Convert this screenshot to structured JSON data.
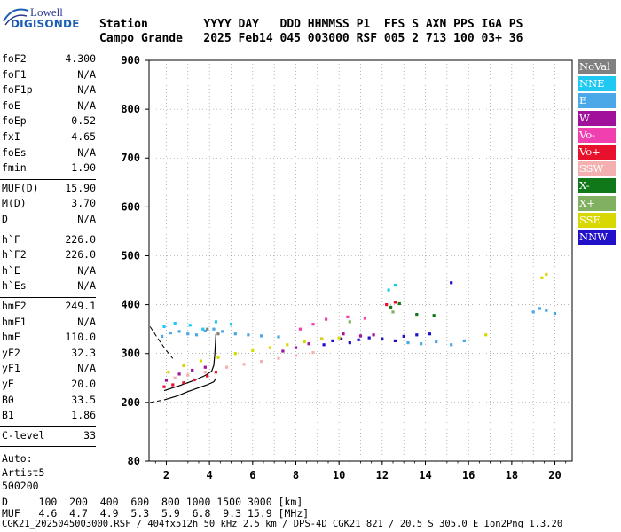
{
  "logo": {
    "top": "Lowell",
    "bottom": "DIGISONDE"
  },
  "header": {
    "line1": "Station        YYYY DAY   DDD HHMMSS P1  FFS S AXN PPS IGA PS",
    "line2": "Campo Grande   2025 Feb14 045 003000 RSF 005 2 713 100 03+ 36"
  },
  "params_group1": [
    {
      "label": "foF2",
      "value": "4.300"
    },
    {
      "label": "foF1",
      "value": "N/A"
    },
    {
      "label": "foF1p",
      "value": "N/A"
    },
    {
      "label": "foE",
      "value": "N/A"
    },
    {
      "label": "foEp",
      "value": "0.52"
    },
    {
      "label": "fxI",
      "value": "4.65"
    },
    {
      "label": "foEs",
      "value": "N/A"
    },
    {
      "label": "fmin",
      "value": "1.90"
    }
  ],
  "params_group2": [
    {
      "label": "MUF(D)",
      "value": "15.90"
    },
    {
      "label": "M(D)",
      "value": "3.70"
    },
    {
      "label": "D",
      "value": "N/A"
    }
  ],
  "params_group3": [
    {
      "label": "h`F",
      "value": "226.0"
    },
    {
      "label": "h`F2",
      "value": "226.0"
    },
    {
      "label": "h`E",
      "value": "N/A"
    },
    {
      "label": "h`Es",
      "value": "N/A"
    }
  ],
  "params_group4": [
    {
      "label": "hmF2",
      "value": "249.1"
    },
    {
      "label": "hmF1",
      "value": "N/A"
    },
    {
      "label": "hmE",
      "value": "110.0"
    },
    {
      "label": "yF2",
      "value": "32.3"
    },
    {
      "label": "yF1",
      "value": "N/A"
    },
    {
      "label": "yE",
      "value": "20.0"
    },
    {
      "label": "B0",
      "value": "33.5"
    },
    {
      "label": "B1",
      "value": "1.86"
    }
  ],
  "params_group5": [
    {
      "label": "C-level",
      "value": "33"
    }
  ],
  "autoscale": {
    "line1": "Auto:",
    "line2": "Artist5",
    "line3": "500200"
  },
  "legend": [
    {
      "name": "NoVal",
      "color": "#808080"
    },
    {
      "name": "NNE",
      "color": "#1ec8f0"
    },
    {
      "name": "E",
      "color": "#4aa8e8"
    },
    {
      "name": "W",
      "color": "#a0109a"
    },
    {
      "name": "Vo-",
      "color": "#f040b0"
    },
    {
      "name": "Vo+",
      "color": "#e8102a"
    },
    {
      "name": "SSW",
      "color": "#f4b0b0"
    },
    {
      "name": "X-",
      "color": "#107818"
    },
    {
      "name": "X+",
      "color": "#80b060"
    },
    {
      "name": "SSE",
      "color": "#d8d800"
    },
    {
      "name": "NNW",
      "color": "#2010c8"
    }
  ],
  "chart_data": {
    "type": "scatter",
    "title": "",
    "xlabel": "",
    "ylabel": "",
    "xlim": [
      1.2,
      20.8
    ],
    "ylim": [
      80,
      900
    ],
    "xticks": [
      2,
      4,
      6,
      8,
      10,
      12,
      14,
      16,
      18,
      20
    ],
    "yticks": [
      80,
      200,
      300,
      400,
      500,
      600,
      700,
      800,
      900
    ],
    "grid": true,
    "series": [
      {
        "name": "E",
        "color": "#4aa8e8",
        "points": [
          [
            1.8,
            335
          ],
          [
            2.2,
            342
          ],
          [
            2.6,
            345
          ],
          [
            3.0,
            340
          ],
          [
            3.4,
            338
          ],
          [
            3.8,
            346
          ],
          [
            4.2,
            350
          ],
          [
            4.6,
            345
          ],
          [
            5.2,
            340
          ],
          [
            5.8,
            338
          ],
          [
            6.4,
            336
          ],
          [
            7.2,
            334
          ],
          [
            13.2,
            322
          ],
          [
            13.8,
            320
          ],
          [
            14.5,
            324
          ],
          [
            15.2,
            318
          ],
          [
            15.8,
            326
          ],
          [
            19.0,
            385
          ],
          [
            19.3,
            392
          ],
          [
            19.6,
            388
          ],
          [
            20.0,
            382
          ]
        ]
      },
      {
        "name": "NNE",
        "color": "#1ec8f0",
        "points": [
          [
            1.9,
            355
          ],
          [
            2.4,
            362
          ],
          [
            3.1,
            358
          ],
          [
            3.7,
            350
          ],
          [
            4.3,
            365
          ],
          [
            5.0,
            360
          ],
          [
            12.3,
            430
          ],
          [
            12.6,
            440
          ]
        ]
      },
      {
        "name": "NNW",
        "color": "#2010c8",
        "points": [
          [
            9.3,
            318
          ],
          [
            9.7,
            326
          ],
          [
            10.1,
            330
          ],
          [
            10.5,
            322
          ],
          [
            10.9,
            328
          ],
          [
            11.4,
            332
          ],
          [
            12.0,
            330
          ],
          [
            12.6,
            326
          ],
          [
            13.0,
            335
          ],
          [
            13.6,
            338
          ],
          [
            14.2,
            340
          ],
          [
            15.2,
            445
          ]
        ]
      },
      {
        "name": "W",
        "color": "#a0109a",
        "points": [
          [
            2.0,
            245
          ],
          [
            2.6,
            258
          ],
          [
            3.2,
            266
          ],
          [
            3.8,
            272
          ],
          [
            7.4,
            305
          ],
          [
            8.0,
            312
          ],
          [
            8.6,
            320
          ],
          [
            9.2,
            330
          ],
          [
            10.2,
            340
          ],
          [
            11.0,
            336
          ],
          [
            11.6,
            338
          ]
        ]
      },
      {
        "name": "Vo-",
        "color": "#f040b0",
        "points": [
          [
            8.2,
            350
          ],
          [
            8.8,
            360
          ],
          [
            9.4,
            370
          ],
          [
            10.4,
            375
          ],
          [
            11.2,
            372
          ]
        ]
      },
      {
        "name": "Vo+",
        "color": "#e8102a",
        "points": [
          [
            1.9,
            232
          ],
          [
            2.3,
            236
          ],
          [
            2.8,
            240
          ],
          [
            3.3,
            246
          ],
          [
            3.9,
            254
          ],
          [
            4.3,
            262
          ],
          [
            12.2,
            400
          ],
          [
            12.6,
            405
          ]
        ]
      },
      {
        "name": "SSW",
        "color": "#f4b0b0",
        "points": [
          [
            2.4,
            250
          ],
          [
            3.0,
            256
          ],
          [
            3.8,
            262
          ],
          [
            4.8,
            272
          ],
          [
            5.6,
            278
          ],
          [
            6.4,
            284
          ],
          [
            7.2,
            290
          ],
          [
            8.0,
            296
          ],
          [
            8.8,
            302
          ]
        ]
      },
      {
        "name": "X-",
        "color": "#107818",
        "points": [
          [
            12.4,
            395
          ],
          [
            12.8,
            402
          ],
          [
            13.6,
            380
          ],
          [
            14.4,
            378
          ]
        ]
      },
      {
        "name": "X+",
        "color": "#80b060",
        "points": [
          [
            10.5,
            365
          ],
          [
            12.5,
            385
          ]
        ]
      },
      {
        "name": "SSE",
        "color": "#d8d800",
        "points": [
          [
            2.1,
            262
          ],
          [
            2.8,
            275
          ],
          [
            3.6,
            285
          ],
          [
            4.4,
            292
          ],
          [
            5.2,
            300
          ],
          [
            6.0,
            306
          ],
          [
            6.8,
            312
          ],
          [
            7.6,
            318
          ],
          [
            8.4,
            324
          ],
          [
            9.2,
            330
          ],
          [
            10.0,
            332
          ],
          [
            16.8,
            338
          ],
          [
            19.4,
            455
          ],
          [
            19.6,
            462
          ]
        ]
      },
      {
        "name": "NoVal",
        "color": "#808080",
        "points": [
          [
            3.9,
            350
          ],
          [
            4.4,
            340
          ]
        ]
      }
    ],
    "profile_curve": [
      [
        1.9,
        205
      ],
      [
        2.5,
        213
      ],
      [
        3.0,
        222
      ],
      [
        3.5,
        230
      ],
      [
        3.9,
        236
      ],
      [
        4.2,
        242
      ],
      [
        4.3,
        249
      ]
    ],
    "profile_curve2": [
      [
        1.9,
        224
      ],
      [
        2.6,
        234
      ],
      [
        3.3,
        245
      ],
      [
        3.8,
        255
      ],
      [
        4.1,
        264
      ],
      [
        4.2,
        276
      ],
      [
        4.25,
        300
      ],
      [
        4.3,
        340
      ]
    ]
  },
  "footer": {
    "line1": "D     100  200  400  600  800 1000 1500 3000 [km]",
    "line2": "MUF   4.6  4.7  4.9  5.3  5.9  6.8  9.3 15.9 [MHz]",
    "line3": "CGK21_2025045003000.RSF / 404fx512h 50 kHz 2.5 km / DPS-4D CGK21 821 / 20.5 S 305.0 E Ion2Png 1.3.20"
  }
}
